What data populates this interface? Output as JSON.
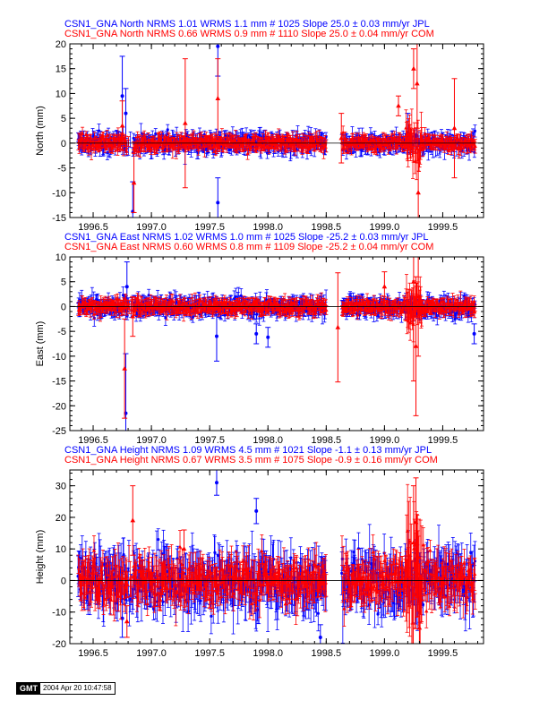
{
  "colors": {
    "jpl": "#0000ff",
    "com": "#ff0000",
    "axis": "#000000",
    "zero": "#000000"
  },
  "footer": {
    "logo": "GMT",
    "timestamp": "2004 Apr 20 10:47:58"
  },
  "chart_data": [
    {
      "type": "scatter",
      "title_lines": [
        {
          "text": "CSN1_GNA North NRMS 1.01 WRMS  1.1 mm # 1025 Slope   25.0 ±  0.03 mm/yr JPL",
          "color": "#0000ff"
        },
        {
          "text": "CSN1_GNA North NRMS 0.66 WRMS  0.9 mm # 1110 Slope   25.0 ±  0.04 mm/yr COM",
          "color": "#ff0000"
        }
      ],
      "xlabel": "",
      "ylabel": "North (mm)",
      "xlim": [
        1996.3,
        1999.85
      ],
      "ylim": [
        -15,
        20
      ],
      "xticks": [
        1996.5,
        1997.0,
        1997.5,
        1998.0,
        1998.5,
        1999.0,
        1999.5
      ],
      "xtick_labels": [
        "1996.5",
        "1997.0",
        "1997.5",
        "1998.0",
        "1998.5",
        "1999.0",
        "1999.5"
      ],
      "yticks": [
        -15,
        -10,
        -5,
        0,
        5,
        10,
        15,
        20
      ],
      "ytick_labels": [
        "-15",
        "-10",
        "-5",
        "0",
        "5",
        "10",
        "15",
        "20"
      ],
      "zero_line": true,
      "data_gap": [
        1998.5,
        1998.63
      ],
      "series": [
        {
          "name": "JPL",
          "marker": "circle",
          "color": "#0000ff",
          "scatter_sd": 0.9,
          "errbar": 1.2,
          "outliers": [
            [
              1996.75,
              9.5,
              8
            ],
            [
              1996.78,
              6.0,
              5
            ],
            [
              1996.84,
              -13.8,
              6
            ],
            [
              1997.57,
              19.5,
              6
            ],
            [
              1997.57,
              -12.0,
              5
            ],
            [
              1999.2,
              2.0,
              4
            ]
          ]
        },
        {
          "name": "COM",
          "marker": "triangle",
          "color": "#ff0000",
          "scatter_sd": 0.7,
          "errbar": 1.0,
          "outliers": [
            [
              1996.75,
              3.5,
              5
            ],
            [
              1996.85,
              -8.0,
              6
            ],
            [
              1997.29,
              4.0,
              13
            ],
            [
              1997.57,
              9.0,
              8
            ],
            [
              1998.63,
              1.0,
              5
            ],
            [
              1999.12,
              7.5,
              2
            ],
            [
              1999.25,
              15.0,
              4
            ],
            [
              1999.28,
              12.0,
              9
            ],
            [
              1999.29,
              -10.0,
              6
            ],
            [
              1999.6,
              3.0,
              10
            ]
          ]
        }
      ]
    },
    {
      "type": "scatter",
      "title_lines": [
        {
          "text": "CSN1_GNA East NRMS 1.02 WRMS  1.0 mm # 1025 Slope  -25.2 ±  0.03 mm/yr JPL",
          "color": "#0000ff"
        },
        {
          "text": "CSN1_GNA East NRMS 0.60 WRMS  0.8 mm # 1109 Slope  -25.2 ±  0.04 mm/yr COM",
          "color": "#ff0000"
        }
      ],
      "xlabel": "",
      "ylabel": "East (mm)",
      "xlim": [
        1996.3,
        1999.85
      ],
      "ylim": [
        -25,
        10
      ],
      "xticks": [
        1996.5,
        1997.0,
        1997.5,
        1998.0,
        1998.5,
        1999.0,
        1999.5
      ],
      "xtick_labels": [
        "1996.5",
        "1997.0",
        "1997.5",
        "1998.0",
        "1998.5",
        "1999.0",
        "1999.5"
      ],
      "yticks": [
        -25,
        -20,
        -15,
        -10,
        -5,
        0,
        5,
        10
      ],
      "ytick_labels": [
        "-25",
        "-20",
        "-15",
        "-10",
        "-5",
        "0",
        "5",
        "10"
      ],
      "zero_line": true,
      "data_gap": [
        1998.5,
        1998.63
      ],
      "series": [
        {
          "name": "JPL",
          "marker": "circle",
          "color": "#0000ff",
          "scatter_sd": 0.9,
          "errbar": 1.2,
          "outliers": [
            [
              1996.78,
              -21.5,
              12
            ],
            [
              1996.79,
              4.0,
              5
            ],
            [
              1997.56,
              -6.0,
              5
            ],
            [
              1997.9,
              -5.5,
              2
            ],
            [
              1998.0,
              -6.2,
              2
            ],
            [
              1999.77,
              -5.5,
              2
            ]
          ]
        },
        {
          "name": "COM",
          "marker": "triangle",
          "color": "#ff0000",
          "scatter_sd": 0.7,
          "errbar": 1.0,
          "outliers": [
            [
              1996.77,
              -12.5,
              10
            ],
            [
              1996.84,
              -2.0,
              4
            ],
            [
              1998.6,
              -4.2,
              11
            ],
            [
              1999.0,
              4.0,
              3
            ],
            [
              1999.25,
              5.0,
              20
            ],
            [
              1999.27,
              -8.0,
              14
            ],
            [
              1999.29,
              2.0,
              12
            ]
          ]
        }
      ]
    },
    {
      "type": "scatter",
      "title_lines": [
        {
          "text": "CSN1_GNA Height NRMS 1.09 WRMS  4.5 mm # 1021 Slope   -1.1 ±  0.13 mm/yr JPL",
          "color": "#0000ff"
        },
        {
          "text": "CSN1_GNA Height NRMS 0.67 WRMS  3.5 mm # 1075 Slope   -0.9 ±  0.16 mm/yr COM",
          "color": "#ff0000"
        }
      ],
      "xlabel": "",
      "ylabel": "Height (mm)",
      "xlim": [
        1996.3,
        1999.85
      ],
      "ylim": [
        -20,
        35
      ],
      "xticks": [
        1996.5,
        1997.0,
        1997.5,
        1998.0,
        1998.5,
        1999.0,
        1999.5
      ],
      "xtick_labels": [
        "1996.5",
        "1997.0",
        "1997.5",
        "1998.0",
        "1998.5",
        "1999.0",
        "1999.5"
      ],
      "yticks": [
        -20,
        -10,
        0,
        10,
        20,
        30
      ],
      "ytick_labels": [
        "-20",
        "-10",
        "0",
        "10",
        "20",
        "30"
      ],
      "zero_line": true,
      "data_gap": [
        1998.5,
        1998.63
      ],
      "series": [
        {
          "name": "JPL",
          "marker": "circle",
          "color": "#0000ff",
          "scatter_sd": 4.5,
          "errbar": 5.0,
          "outliers": [
            [
              1997.56,
              31.0,
              4
            ],
            [
              1997.9,
              22.0,
              4
            ],
            [
              1998.45,
              -18.0,
              4
            ],
            [
              1996.75,
              -12.0,
              6
            ]
          ]
        },
        {
          "name": "COM",
          "marker": "triangle",
          "color": "#ff0000",
          "scatter_sd": 3.5,
          "errbar": 4.0,
          "outliers": [
            [
              1996.84,
              19.0,
              11
            ],
            [
              1996.79,
              -13.0,
              5
            ],
            [
              1997.28,
              10.0,
              6
            ],
            [
              1999.27,
              18.5,
              14
            ],
            [
              1999.3,
              -15.0,
              10
            ],
            [
              1999.25,
              12.0,
              18
            ]
          ]
        }
      ]
    }
  ]
}
